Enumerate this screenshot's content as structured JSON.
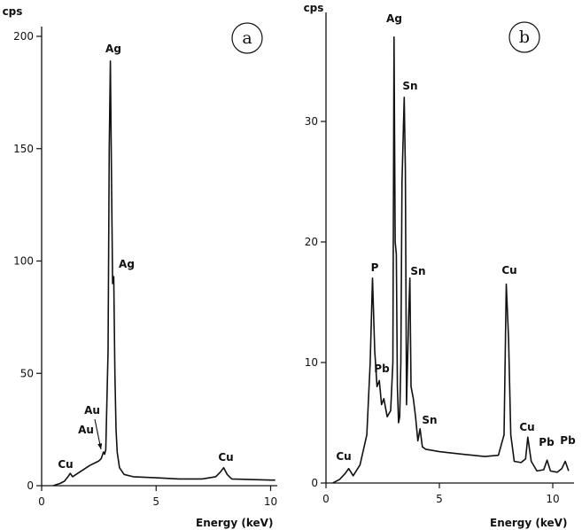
{
  "chart_data": [
    {
      "type": "line",
      "panel_label": "a",
      "ylabel": "cps",
      "xlabel": "Energy (keV)",
      "xlim": [
        0,
        10.2
      ],
      "ylim": [
        0,
        200
      ],
      "xticks": [
        {
          "value": 0,
          "label": "0"
        },
        {
          "value": 5,
          "label": "5"
        },
        {
          "value": 10,
          "label": "10"
        }
      ],
      "yticks": [
        {
          "value": 0,
          "label": "0"
        },
        {
          "value": 50,
          "label": "50"
        },
        {
          "value": 100,
          "label": "100"
        },
        {
          "value": 150,
          "label": "150"
        },
        {
          "value": 200,
          "label": "200"
        }
      ],
      "series": [
        {
          "name": "spectrum",
          "x": [
            0.5,
            0.8,
            1.0,
            1.15,
            1.25,
            1.35,
            1.5,
            1.8,
            2.1,
            2.3,
            2.5,
            2.6,
            2.7,
            2.75,
            2.8,
            2.9,
            2.95,
            3.0,
            3.05,
            3.1,
            3.15,
            3.2,
            3.25,
            3.3,
            3.4,
            3.6,
            4.0,
            5.0,
            6.0,
            7.0,
            7.6,
            7.8,
            7.95,
            8.1,
            8.3,
            9.0,
            10.0,
            10.2
          ],
          "y": [
            0,
            1,
            2,
            4,
            5.5,
            4,
            5,
            7,
            9,
            10,
            11,
            12,
            15,
            14,
            16,
            60,
            150,
            189,
            140,
            90,
            93,
            50,
            25,
            15,
            8,
            5,
            4,
            3.5,
            3,
            3,
            4,
            6,
            8,
            5,
            3,
            2.8,
            2.5,
            2.5
          ]
        }
      ],
      "annotations": [
        {
          "text": "Ag",
          "x": 3.1,
          "y": 192
        },
        {
          "text": "Ag",
          "x": 3.75,
          "y": 98
        },
        {
          "text": "Au",
          "x": 2.3,
          "y": 33
        },
        {
          "text": "Au",
          "x": 2.0,
          "y": 12
        },
        {
          "text": "Cu",
          "x": 1.1,
          "y": 7
        },
        {
          "text": "Cu",
          "x": 8.0,
          "y": 9
        }
      ]
    },
    {
      "type": "line",
      "panel_label": "b",
      "ylabel": "cps",
      "xlabel": "Energy (keV)",
      "xlim": [
        0,
        10.7
      ],
      "ylim": [
        0,
        37.5
      ],
      "xticks": [
        {
          "value": 0,
          "label": "0"
        },
        {
          "value": 5,
          "label": "5"
        },
        {
          "value": 10,
          "label": "10"
        }
      ],
      "yticks": [
        {
          "value": 0,
          "label": "0"
        },
        {
          "value": 10,
          "label": "10"
        },
        {
          "value": 20,
          "label": "20"
        },
        {
          "value": 30,
          "label": "30"
        }
      ],
      "series": [
        {
          "name": "spectrum",
          "x": [
            0.3,
            0.6,
            0.85,
            1.0,
            1.2,
            1.5,
            1.8,
            1.95,
            2.05,
            2.15,
            2.25,
            2.35,
            2.45,
            2.55,
            2.7,
            2.85,
            2.95,
            3.0,
            3.05,
            3.1,
            3.15,
            3.2,
            3.25,
            3.3,
            3.35,
            3.45,
            3.5,
            3.55,
            3.65,
            3.7,
            3.75,
            3.85,
            3.95,
            4.05,
            4.15,
            4.25,
            4.4,
            5.0,
            6.0,
            7.0,
            7.6,
            7.85,
            7.95,
            8.05,
            8.15,
            8.3,
            8.6,
            8.8,
            8.9,
            9.05,
            9.3,
            9.6,
            9.75,
            9.9,
            10.2,
            10.4,
            10.55,
            10.7
          ],
          "y": [
            0,
            0.3,
            0.8,
            1.2,
            0.6,
            1.5,
            4,
            10,
            17,
            11,
            8,
            8.5,
            6.5,
            7,
            5.5,
            6,
            10,
            37,
            20,
            19,
            8,
            5,
            5.5,
            10,
            25,
            32,
            26,
            6.5,
            14,
            17,
            8,
            7,
            5.5,
            3.5,
            4.5,
            3,
            2.8,
            2.6,
            2.4,
            2.2,
            2.3,
            4,
            16.5,
            12,
            4,
            1.8,
            1.7,
            2,
            3.8,
            1.8,
            1,
            1.1,
            1.9,
            1,
            0.9,
            1.2,
            1.8,
            1
          ]
        }
      ],
      "annotations": [
        {
          "text": "Ag",
          "x": 3.0,
          "y": 37.5
        },
        {
          "text": "Sn",
          "x": 3.75,
          "y": 33.2
        },
        {
          "text": "P",
          "x": 2.15,
          "y": 18.5
        },
        {
          "text": "Sn",
          "x": 4.1,
          "y": 18.0
        },
        {
          "text": "Cu",
          "x": 8.05,
          "y": 18.0
        },
        {
          "text": "Pb",
          "x": 2.4,
          "y": 9.5
        },
        {
          "text": "Sn",
          "x": 4.55,
          "y": 6.0
        },
        {
          "text": "Cu",
          "x": 0.85,
          "y": 2.2
        },
        {
          "text": "Cu",
          "x": 8.95,
          "y": 4.9
        },
        {
          "text": "Pb",
          "x": 9.85,
          "y": 3.4
        },
        {
          "text": "Pb",
          "x": 10.4,
          "y": 4.0
        }
      ]
    }
  ]
}
